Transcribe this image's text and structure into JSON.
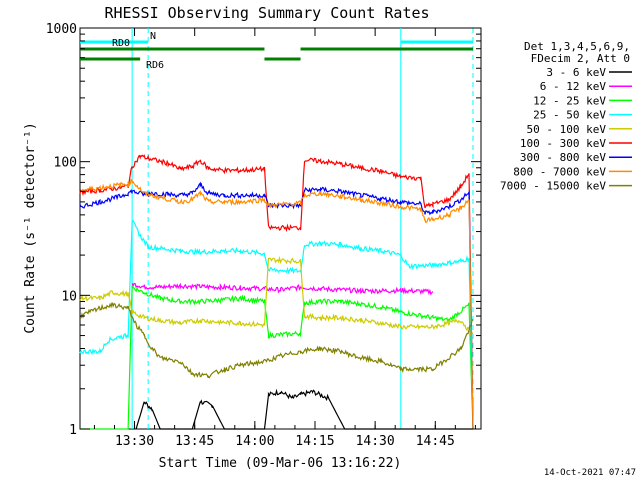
{
  "chart_data": {
    "type": "line",
    "title": "RHESSI Observing Summary Count Rates",
    "xlabel": "Start Time (09-Mar-06 13:16:22)",
    "ylabel": "Count Rate (s⁻¹ detector⁻¹)",
    "x_unit": "minutes after 13:16:22",
    "xlim": [
      0,
      100
    ],
    "ylim": [
      1,
      1000
    ],
    "yscale": "log",
    "x_ticks": [
      {
        "value": 13.6,
        "label": "13:30"
      },
      {
        "value": 28.6,
        "label": "13:45"
      },
      {
        "value": 43.6,
        "label": "14:00"
      },
      {
        "value": 58.6,
        "label": "14:15"
      },
      {
        "value": 73.6,
        "label": "14:30"
      },
      {
        "value": 88.6,
        "label": "14:45"
      }
    ],
    "y_ticks": [
      {
        "value": 1,
        "label": "1"
      },
      {
        "value": 10,
        "label": "10"
      },
      {
        "value": 100,
        "label": "100"
      },
      {
        "value": 1000,
        "label": "1000"
      }
    ],
    "grid": false,
    "legend_position": "right",
    "legend_header": [
      "Det 1,3,4,5,6,9,",
      "FDecim 2, Att 0"
    ],
    "timestamp": "14-Oct-2021 07:47",
    "flags": [
      {
        "name": "N",
        "color": "#00ffff",
        "level": 1,
        "segments": [
          [
            0,
            17
          ],
          [
            80,
            98
          ]
        ]
      },
      {
        "name": "RD0",
        "color": "#008000",
        "level": 2,
        "segments": [
          [
            0,
            46
          ],
          [
            55,
            98
          ]
        ]
      },
      {
        "name": "RD6",
        "color": "#008000",
        "level": 3,
        "segments": [
          [
            0,
            15
          ],
          [
            46,
            55
          ]
        ]
      }
    ],
    "vlines": [
      {
        "x": 13,
        "color": "#00ffff",
        "style": "solid"
      },
      {
        "x": 17,
        "color": "#00ffff",
        "style": "dashed"
      },
      {
        "x": 80,
        "color": "#00ffff",
        "style": "solid"
      },
      {
        "x": 98,
        "color": "#00ffff",
        "style": "dashed"
      }
    ],
    "series": [
      {
        "name": "3 - 6 keV",
        "color": "#000000",
        "points": [
          [
            14,
            1.0
          ],
          [
            16,
            1.6
          ],
          [
            18,
            1.4
          ],
          [
            20,
            1.0
          ],
          [
            28,
            1.0
          ],
          [
            30,
            1.6
          ],
          [
            33,
            1.5
          ],
          [
            36,
            1.0
          ],
          [
            46,
            1.0
          ],
          [
            47,
            1.8
          ],
          [
            50,
            1.9
          ],
          [
            53,
            1.7
          ],
          [
            55,
            1.8
          ],
          [
            58,
            1.9
          ],
          [
            62,
            1.7
          ],
          [
            66,
            1.0
          ],
          [
            98,
            1.0
          ]
        ]
      },
      {
        "name": "6 - 12 keV",
        "color": "#ff00ff",
        "points": [
          [
            13,
            12.2
          ],
          [
            16,
            11.6
          ],
          [
            20,
            11.5
          ],
          [
            25,
            11.8
          ],
          [
            30,
            11.6
          ],
          [
            35,
            11.5
          ],
          [
            40,
            11.4
          ],
          [
            46,
            11.2
          ],
          [
            50,
            11.0
          ],
          [
            55,
            11.5
          ],
          [
            60,
            11.2
          ],
          [
            65,
            11.0
          ],
          [
            70,
            10.8
          ],
          [
            75,
            10.8
          ],
          [
            80,
            10.9
          ],
          [
            88,
            10.6
          ]
        ]
      },
      {
        "name": "12 - 25 keV",
        "color": "#00ff00",
        "points": [
          [
            0,
            1.0
          ],
          [
            12,
            1.0
          ],
          [
            13,
            11.5
          ],
          [
            16,
            10.5
          ],
          [
            20,
            9.5
          ],
          [
            25,
            9.0
          ],
          [
            30,
            9.0
          ],
          [
            35,
            9.2
          ],
          [
            40,
            9.5
          ],
          [
            46,
            9.0
          ],
          [
            47,
            5.0
          ],
          [
            55,
            5.2
          ],
          [
            56,
            8.8
          ],
          [
            60,
            9.0
          ],
          [
            65,
            9.0
          ],
          [
            70,
            8.6
          ],
          [
            75,
            8.2
          ],
          [
            80,
            7.5
          ],
          [
            88,
            6.8
          ],
          [
            92,
            6.5
          ],
          [
            97,
            8.5
          ],
          [
            98,
            1.0
          ]
        ]
      },
      {
        "name": "25 - 50 keV",
        "color": "#00ffff",
        "points": [
          [
            0,
            3.8
          ],
          [
            5,
            3.8
          ],
          [
            7,
            4.6
          ],
          [
            10,
            4.9
          ],
          [
            12,
            5.0
          ],
          [
            13,
            36.0
          ],
          [
            15,
            28.0
          ],
          [
            17,
            23.0
          ],
          [
            20,
            22.5
          ],
          [
            25,
            21.5
          ],
          [
            30,
            21.0
          ],
          [
            35,
            21.5
          ],
          [
            40,
            21.5
          ],
          [
            46,
            20.5
          ],
          [
            47,
            15.5
          ],
          [
            55,
            15.2
          ],
          [
            56,
            24.0
          ],
          [
            60,
            24.5
          ],
          [
            65,
            24.0
          ],
          [
            70,
            22.5
          ],
          [
            75,
            21.5
          ],
          [
            80,
            20.0
          ],
          [
            82,
            16.5
          ],
          [
            88,
            16.8
          ],
          [
            95,
            18.0
          ],
          [
            97,
            19.0
          ],
          [
            98,
            1.0
          ]
        ]
      },
      {
        "name": "50 - 100 keV",
        "color": "#cccc00",
        "points": [
          [
            0,
            9.5
          ],
          [
            5,
            9.5
          ],
          [
            8,
            10.5
          ],
          [
            12,
            10.2
          ],
          [
            13,
            7.5
          ],
          [
            16,
            6.8
          ],
          [
            20,
            6.5
          ],
          [
            25,
            6.2
          ],
          [
            30,
            6.5
          ],
          [
            35,
            6.3
          ],
          [
            40,
            6.2
          ],
          [
            46,
            6.0
          ],
          [
            47,
            18.5
          ],
          [
            55,
            18.0
          ],
          [
            56,
            7.0
          ],
          [
            60,
            6.8
          ],
          [
            65,
            6.8
          ],
          [
            70,
            6.5
          ],
          [
            75,
            6.2
          ],
          [
            80,
            5.8
          ],
          [
            88,
            5.8
          ],
          [
            95,
            6.5
          ],
          [
            98,
            5.0
          ]
        ]
      },
      {
        "name": "100 - 300 keV",
        "color": "#ff0000",
        "points": [
          [
            0,
            59.0
          ],
          [
            5,
            61.0
          ],
          [
            10,
            64.0
          ],
          [
            12,
            66.0
          ],
          [
            13,
            92.0
          ],
          [
            15,
            110.0
          ],
          [
            18,
            104.0
          ],
          [
            22,
            97.0
          ],
          [
            25,
            88.0
          ],
          [
            28,
            92.0
          ],
          [
            30,
            102.0
          ],
          [
            32,
            89.0
          ],
          [
            36,
            86.0
          ],
          [
            40,
            86.0
          ],
          [
            46,
            88.0
          ],
          [
            47,
            32.0
          ],
          [
            55,
            32.0
          ],
          [
            56,
            103.0
          ],
          [
            60,
            101.0
          ],
          [
            65,
            96.0
          ],
          [
            70,
            90.0
          ],
          [
            75,
            85.0
          ],
          [
            80,
            77.0
          ],
          [
            85,
            75.0
          ],
          [
            86,
            46.0
          ],
          [
            88,
            48.0
          ],
          [
            92,
            52.0
          ],
          [
            95,
            65.0
          ],
          [
            97,
            82.0
          ],
          [
            98,
            1.0
          ]
        ]
      },
      {
        "name": "300 - 800 keV",
        "color": "#0000ff",
        "points": [
          [
            0,
            46.0
          ],
          [
            5,
            50.0
          ],
          [
            10,
            55.0
          ],
          [
            12,
            58.0
          ],
          [
            13,
            60.0
          ],
          [
            16,
            57.0
          ],
          [
            18,
            58.0
          ],
          [
            22,
            57.0
          ],
          [
            25,
            56.0
          ],
          [
            28,
            58.0
          ],
          [
            30,
            67.0
          ],
          [
            32,
            58.0
          ],
          [
            36,
            56.0
          ],
          [
            40,
            56.0
          ],
          [
            46,
            56.0
          ],
          [
            47,
            47.0
          ],
          [
            55,
            47.0
          ],
          [
            56,
            61.0
          ],
          [
            60,
            62.0
          ],
          [
            65,
            60.0
          ],
          [
            70,
            56.0
          ],
          [
            75,
            53.0
          ],
          [
            80,
            50.0
          ],
          [
            85,
            48.0
          ],
          [
            86,
            41.0
          ],
          [
            88,
            42.0
          ],
          [
            92,
            46.0
          ],
          [
            95,
            52.0
          ],
          [
            97,
            59.0
          ],
          [
            98,
            1.0
          ]
        ]
      },
      {
        "name": "800 - 7000 keV",
        "color": "#ff8c00",
        "points": [
          [
            0,
            61.0
          ],
          [
            5,
            64.0
          ],
          [
            10,
            67.0
          ],
          [
            12,
            68.0
          ],
          [
            13,
            72.0
          ],
          [
            16,
            58.0
          ],
          [
            20,
            54.0
          ],
          [
            25,
            50.0
          ],
          [
            28,
            52.0
          ],
          [
            30,
            58.0
          ],
          [
            32,
            50.0
          ],
          [
            36,
            50.0
          ],
          [
            40,
            50.0
          ],
          [
            46,
            52.0
          ],
          [
            47,
            47.0
          ],
          [
            55,
            49.0
          ],
          [
            56,
            56.0
          ],
          [
            60,
            58.0
          ],
          [
            65,
            55.0
          ],
          [
            70,
            52.0
          ],
          [
            75,
            49.0
          ],
          [
            80,
            46.0
          ],
          [
            85,
            44.0
          ],
          [
            86,
            36.0
          ],
          [
            88,
            37.0
          ],
          [
            92,
            40.0
          ],
          [
            95,
            45.0
          ],
          [
            97,
            52.0
          ],
          [
            98,
            1.0
          ]
        ]
      },
      {
        "name": "7000 - 15000 keV",
        "color": "#808000",
        "points": [
          [
            0,
            7.0
          ],
          [
            5,
            8.0
          ],
          [
            8,
            8.5
          ],
          [
            12,
            8.0
          ],
          [
            14,
            6.0
          ],
          [
            16,
            5.0
          ],
          [
            18,
            4.0
          ],
          [
            20,
            3.4
          ],
          [
            25,
            3.2
          ],
          [
            28,
            2.6
          ],
          [
            32,
            2.5
          ],
          [
            36,
            2.8
          ],
          [
            40,
            3.0
          ],
          [
            46,
            3.2
          ],
          [
            50,
            3.5
          ],
          [
            55,
            3.8
          ],
          [
            60,
            4.0
          ],
          [
            65,
            3.8
          ],
          [
            70,
            3.4
          ],
          [
            75,
            3.2
          ],
          [
            80,
            2.8
          ],
          [
            88,
            2.8
          ],
          [
            95,
            4.0
          ],
          [
            98,
            6.5
          ]
        ]
      }
    ]
  }
}
